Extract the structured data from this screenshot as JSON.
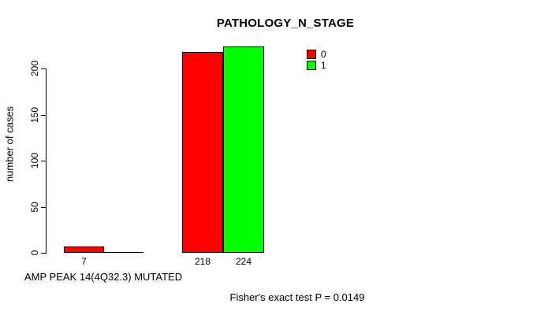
{
  "chart_data": {
    "type": "bar",
    "title": "PATHOLOGY_N_STAGE",
    "ylabel": "number of cases",
    "xlabel": "AMP PEAK 14(4Q32.3) MUTATED",
    "annotation": "Fisher's exact test P = 0.0149",
    "yticks": [
      0,
      50,
      100,
      150,
      200
    ],
    "ylim": [
      0,
      224
    ],
    "grid": false,
    "legend_position": "top-right",
    "groups": [
      "group-1",
      "group-2"
    ],
    "series": [
      {
        "name": "0",
        "color": "#ff0000",
        "values": [
          7,
          218
        ]
      },
      {
        "name": "1",
        "color": "#00ff00",
        "values": [
          0,
          224
        ]
      }
    ],
    "visible_bar_value_labels": [
      "7",
      "218",
      "224"
    ]
  }
}
